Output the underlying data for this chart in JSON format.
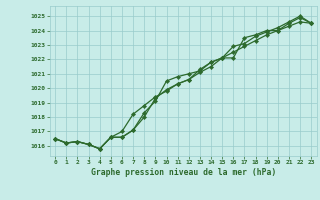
{
  "title": "Graphe pression niveau de la mer (hPa)",
  "bg_color": "#c8ece8",
  "grid_color": "#99cccc",
  "line_color": "#2d6a2d",
  "marker_color": "#2d6a2d",
  "xlim": [
    -0.5,
    23.5
  ],
  "ylim": [
    1015.3,
    1025.7
  ],
  "xticks": [
    0,
    1,
    2,
    3,
    4,
    5,
    6,
    7,
    8,
    9,
    10,
    11,
    12,
    13,
    14,
    15,
    16,
    17,
    18,
    19,
    20,
    21,
    22,
    23
  ],
  "yticks": [
    1016,
    1017,
    1018,
    1019,
    1020,
    1021,
    1022,
    1023,
    1024,
    1025
  ],
  "series1": [
    1016.5,
    1016.2,
    1016.3,
    1016.1,
    1015.8,
    1016.6,
    1016.6,
    1017.1,
    1018.3,
    1019.1,
    1020.5,
    1020.8,
    1021.0,
    1021.2,
    1021.8,
    1022.1,
    1022.1,
    1023.5,
    1023.7,
    1024.0,
    1024.0,
    1024.5,
    1024.9,
    1024.5
  ],
  "series2": [
    1016.5,
    1016.2,
    1016.3,
    1016.1,
    1015.8,
    1016.6,
    1017.0,
    1018.2,
    1018.8,
    1019.4,
    1019.8,
    1020.3,
    1020.6,
    1021.1,
    1021.5,
    1022.1,
    1022.5,
    1022.9,
    1023.3,
    1023.7,
    1024.0,
    1024.3,
    1024.6,
    1024.5
  ],
  "series3": [
    1016.5,
    1016.2,
    1016.3,
    1016.1,
    1015.8,
    1016.6,
    1016.6,
    1017.1,
    1018.0,
    1019.3,
    1019.9,
    1020.3,
    1020.6,
    1021.3,
    1021.8,
    1022.1,
    1022.9,
    1023.1,
    1023.6,
    1023.9,
    1024.2,
    1024.6,
    1025.0,
    1024.5
  ]
}
